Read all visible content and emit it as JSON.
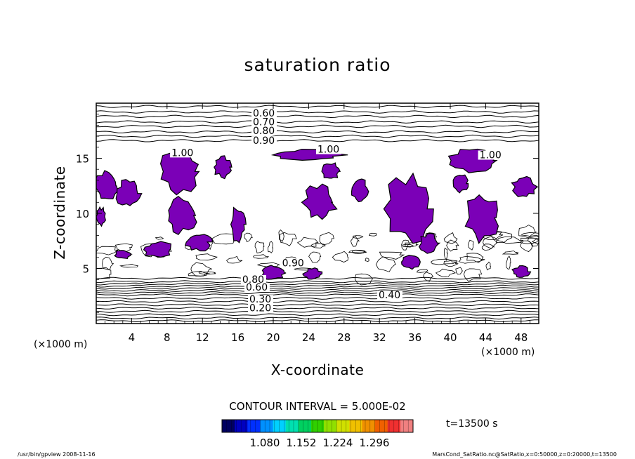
{
  "chart_data": {
    "type": "contour",
    "title": "saturation ratio",
    "xlabel": "X-coordinate",
    "ylabel": "Z-coordinate",
    "x_unit": "(×1000 m)",
    "z_unit": "(×1000 m)",
    "xlim": [
      0,
      50
    ],
    "ylim": [
      0,
      20
    ],
    "x_ticks": [
      "4",
      "8",
      "12",
      "16",
      "20",
      "24",
      "28",
      "32",
      "36",
      "40",
      "44",
      "48"
    ],
    "x_tick_values": [
      4,
      8,
      12,
      16,
      20,
      24,
      28,
      32,
      36,
      40,
      44,
      48
    ],
    "y_ticks": [
      "5",
      "10",
      "15"
    ],
    "y_tick_values": [
      5,
      10,
      15
    ],
    "contour_interval": "CONTOUR INTERVAL = 5.000E-02",
    "fill_color": "#7b00b7",
    "contour_labels": [
      {
        "text": "0.60",
        "x": 17.7,
        "z": 18.8
      },
      {
        "text": "0.70",
        "x": 17.7,
        "z": 18.0
      },
      {
        "text": "0.80",
        "x": 17.7,
        "z": 17.2
      },
      {
        "text": "0.90",
        "x": 17.7,
        "z": 16.3
      },
      {
        "text": "1.00",
        "x": 8.5,
        "z": 15.2
      },
      {
        "text": "1.00",
        "x": 25.0,
        "z": 15.5
      },
      {
        "text": "1.00",
        "x": 43.3,
        "z": 15.0
      },
      {
        "text": "0.90",
        "x": 21.0,
        "z": 5.2
      },
      {
        "text": "0.80",
        "x": 16.5,
        "z": 3.7
      },
      {
        "text": "0.60",
        "x": 16.9,
        "z": 3.0
      },
      {
        "text": "0.30",
        "x": 17.3,
        "z": 1.9
      },
      {
        "text": "0.20",
        "x": 17.3,
        "z": 1.1
      },
      {
        "text": "0.40",
        "x": 31.9,
        "z": 2.3
      }
    ],
    "colorbar": {
      "tick_labels": [
        "1.080",
        "1.152",
        "1.224",
        "1.296"
      ],
      "colors": [
        "#000060",
        "#0000c0",
        "#0030ff",
        "#0090ff",
        "#00d0ff",
        "#00e0b0",
        "#00d060",
        "#30d000",
        "#90e000",
        "#d0e000",
        "#f0c000",
        "#f09000",
        "#f06000",
        "#f03030",
        "#f08080"
      ]
    },
    "time_label": "t=13500 s",
    "footer_left": "/usr/bin/gpview  2008-11-16",
    "footer_right": "MarsCond_SatRatio.nc@SatRatio,x=0:50000,z=0:20000,t=13500"
  }
}
